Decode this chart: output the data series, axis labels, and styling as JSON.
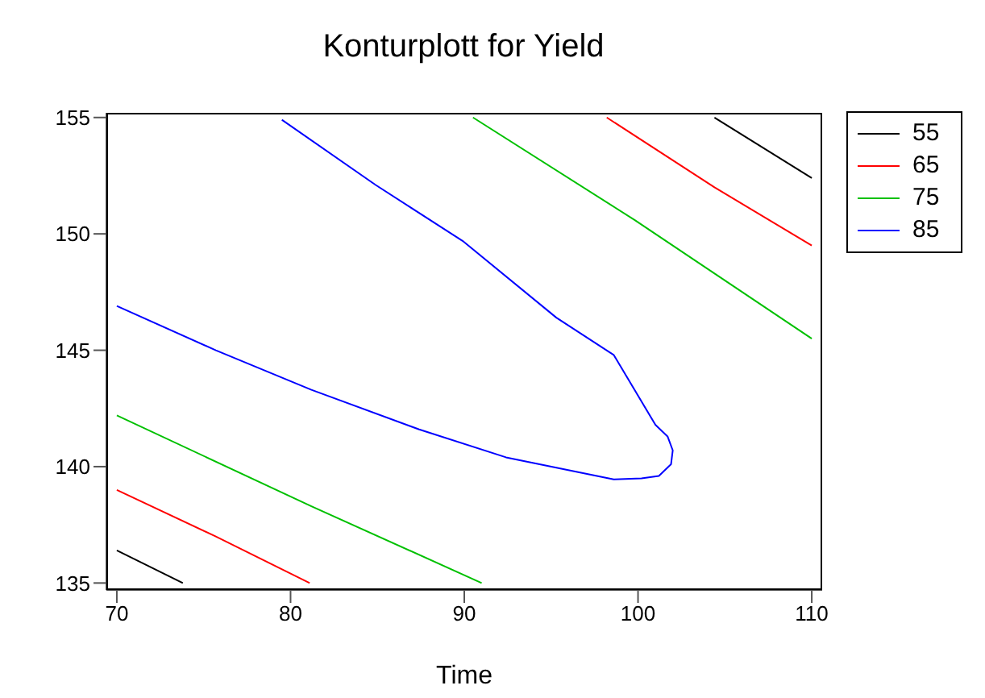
{
  "chart_data": {
    "type": "line",
    "title": "Konturplott for Yield",
    "xlabel": "Time",
    "xlim": [
      69.4,
      110.6
    ],
    "ylim": [
      134.7,
      155.2
    ],
    "xticks": [
      70,
      80,
      90,
      100,
      110
    ],
    "yticks": [
      135,
      140,
      145,
      150,
      155
    ],
    "grid": false,
    "legend": "top right",
    "marker": "none",
    "line_style": "solid",
    "series": [
      {
        "name": "55",
        "color": "#000000",
        "x": [
          70,
          73.8
        ],
        "values": [
          136.4,
          135
        ]
      },
      {
        "name": "65",
        "color": "#ff0000",
        "x": [
          70,
          75.7,
          81.1
        ],
        "values": [
          139.0,
          137.0,
          135
        ]
      },
      {
        "name": "75",
        "color": "#00c000",
        "x": [
          70,
          81.2,
          91.0
        ],
        "values": [
          142.2,
          138.3,
          135.0
        ]
      },
      {
        "name": "85",
        "color": "#0000ff",
        "x": [
          70,
          75.7,
          81.2,
          87.4,
          92.4,
          98.6,
          100.2,
          101.2,
          101.9,
          102.0,
          101.7,
          101.0,
          98.6,
          95.3,
          89.9,
          84.9,
          79.5
        ],
        "values": [
          146.9,
          145.0,
          143.3,
          141.6,
          140.4,
          139.45,
          139.5,
          139.6,
          140.1,
          140.7,
          141.3,
          141.8,
          144.8,
          146.4,
          149.7,
          152.1,
          154.9
        ]
      },
      {
        "color": "#000000",
        "x": [
          104.4,
          110
        ],
        "values": [
          155,
          152.4
        ]
      },
      {
        "color": "#ff0000",
        "x": [
          98.2,
          104.4,
          110
        ],
        "values": [
          155,
          152.0,
          149.5
        ]
      },
      {
        "color": "#00c000",
        "x": [
          90.5,
          99.8,
          110
        ],
        "values": [
          155,
          150.6,
          145.5
        ]
      }
    ]
  }
}
